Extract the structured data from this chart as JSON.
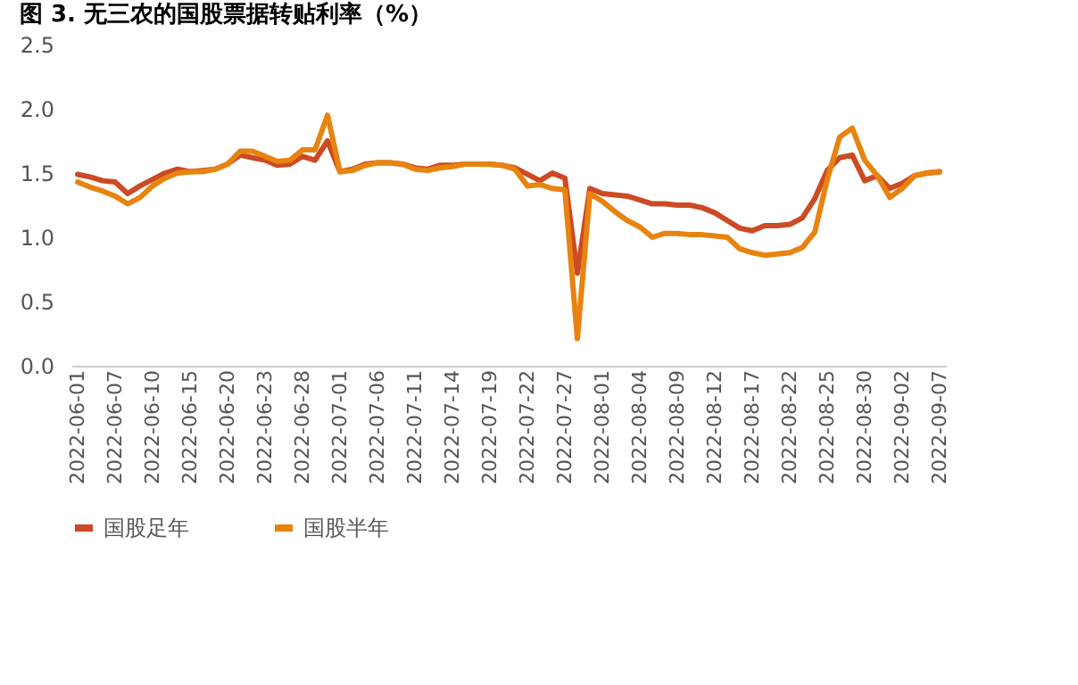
{
  "chart_data": {
    "type": "line",
    "title": "图 3. 无三农的国股票据转贴利率（%）",
    "categories": [
      "2022-06-01",
      null,
      null,
      "2022-06-07",
      null,
      null,
      "2022-06-10",
      null,
      null,
      "2022-06-15",
      null,
      null,
      "2022-06-20",
      null,
      null,
      "2022-06-23",
      null,
      null,
      "2022-06-28",
      null,
      null,
      "2022-07-01",
      null,
      null,
      "2022-07-06",
      null,
      null,
      "2022-07-11",
      null,
      null,
      "2022-07-14",
      null,
      null,
      "2022-07-19",
      null,
      null,
      "2022-07-22",
      null,
      null,
      "2022-07-27",
      null,
      null,
      "2022-08-01",
      null,
      null,
      "2022-08-04",
      null,
      null,
      "2022-08-09",
      null,
      null,
      "2022-08-12",
      null,
      null,
      "2022-08-17",
      null,
      null,
      "2022-08-22",
      null,
      null,
      "2022-08-25",
      null,
      null,
      "2022-08-30",
      null,
      null,
      "2022-09-02",
      null,
      null,
      "2022-09-07"
    ],
    "series": [
      {
        "name": "国股足年",
        "color": "#cc4a24",
        "values": [
          1.49,
          1.47,
          1.44,
          1.43,
          1.34,
          1.4,
          1.45,
          1.5,
          1.53,
          1.51,
          1.52,
          1.53,
          1.57,
          1.64,
          1.62,
          1.6,
          1.56,
          1.57,
          1.63,
          1.6,
          1.75,
          1.51,
          1.53,
          1.57,
          1.58,
          1.58,
          1.57,
          1.54,
          1.53,
          1.56,
          1.56,
          1.57,
          1.57,
          1.57,
          1.56,
          1.54,
          1.49,
          1.44,
          1.5,
          1.46,
          0.72,
          1.38,
          1.34,
          1.33,
          1.32,
          1.29,
          1.26,
          1.26,
          1.25,
          1.25,
          1.23,
          1.19,
          1.13,
          1.07,
          1.05,
          1.09,
          1.09,
          1.1,
          1.15,
          1.3,
          1.52,
          1.62,
          1.64,
          1.44,
          1.48,
          1.38,
          1.42,
          1.48,
          1.5,
          1.51
        ]
      },
      {
        "name": "国股半年",
        "color": "#e8830f",
        "values": [
          1.43,
          1.39,
          1.36,
          1.32,
          1.26,
          1.31,
          1.4,
          1.46,
          1.5,
          1.51,
          1.51,
          1.53,
          1.57,
          1.67,
          1.67,
          1.63,
          1.59,
          1.6,
          1.68,
          1.68,
          1.95,
          1.51,
          1.52,
          1.56,
          1.58,
          1.58,
          1.57,
          1.53,
          1.52,
          1.54,
          1.55,
          1.57,
          1.57,
          1.57,
          1.56,
          1.53,
          1.4,
          1.41,
          1.38,
          1.37,
          0.21,
          1.34,
          1.28,
          1.2,
          1.13,
          1.08,
          1.0,
          1.03,
          1.03,
          1.02,
          1.02,
          1.01,
          1.0,
          0.91,
          0.88,
          0.86,
          0.87,
          0.88,
          0.92,
          1.04,
          1.45,
          1.78,
          1.85,
          1.6,
          1.48,
          1.31,
          1.38,
          1.48,
          1.5,
          1.51
        ]
      }
    ],
    "ylim": [
      0,
      2.5
    ],
    "yticks": [
      {
        "value": 0,
        "label": "0.0"
      },
      {
        "value": 0.5,
        "label": "0.5"
      },
      {
        "value": 1,
        "label": "1.0"
      },
      {
        "value": 1.5,
        "label": "1.5"
      },
      {
        "value": 2,
        "label": "2.0"
      },
      {
        "value": 2.5,
        "label": "2.5"
      }
    ],
    "grid": false,
    "legend": "bottom",
    "marker": "none",
    "line_style": "solid"
  }
}
